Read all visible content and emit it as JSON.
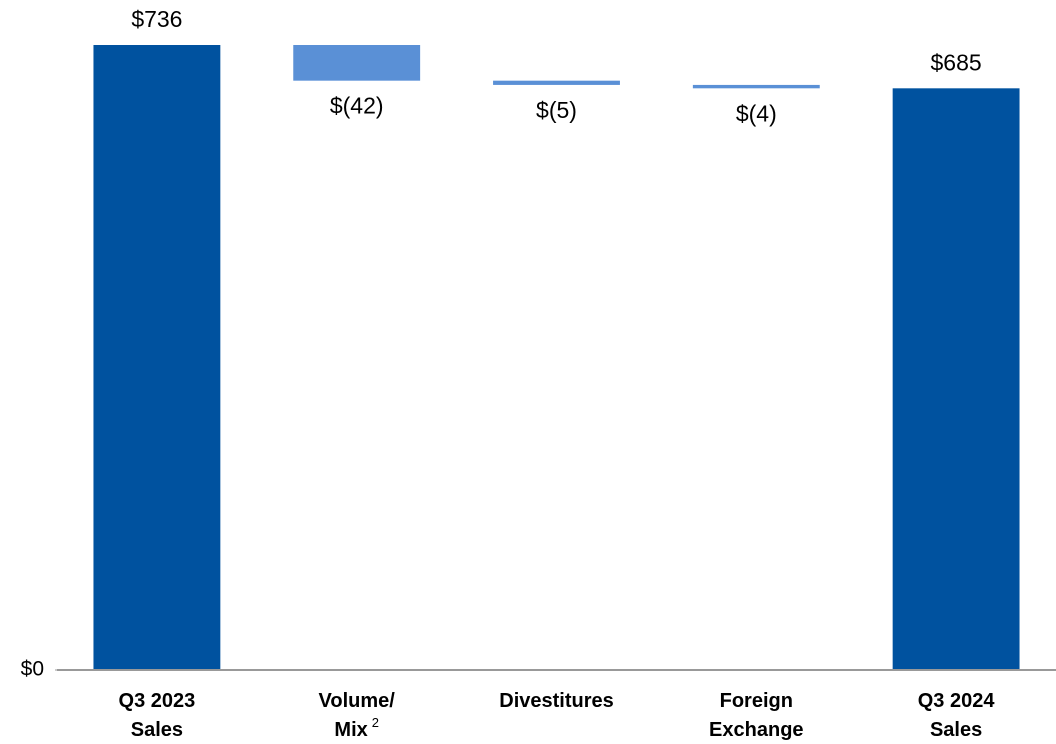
{
  "chart_data": {
    "type": "waterfall",
    "categories": [
      [
        "Q3 2023",
        "Sales"
      ],
      [
        "Volume/",
        "Mix"
      ],
      [
        "Divestitures"
      ],
      [
        "Foreign",
        "Exchange"
      ],
      [
        "Q3 2024",
        "Sales"
      ]
    ],
    "footnote_marks": [
      null,
      "2",
      null,
      null,
      null
    ],
    "measures": [
      "absolute",
      "relative",
      "relative",
      "relative",
      "total"
    ],
    "values": [
      736,
      -42,
      -5,
      -4,
      685
    ],
    "value_labels": [
      "$736",
      "$(42)",
      "$(5)",
      "$(4)",
      "$685"
    ],
    "total_color": "#00529f",
    "change_color": "#5a90d6",
    "ylim": [
      0,
      789
    ],
    "yticks": [
      {
        "value": 0,
        "label": "$0"
      }
    ]
  }
}
